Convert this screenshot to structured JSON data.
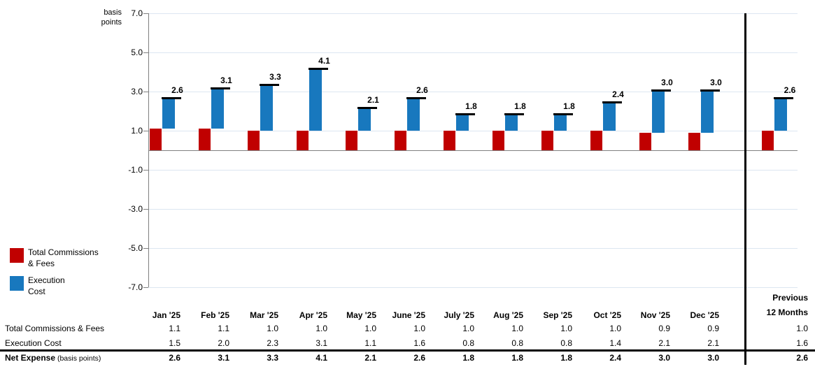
{
  "chart_data": {
    "type": "bar",
    "subtype": "stacked-waterfall",
    "title": "",
    "ylabel": "basis points",
    "ylim": [
      -7.0,
      7.0
    ],
    "y_ticks": [
      7.0,
      5.0,
      3.0,
      1.0,
      -1.0,
      -3.0,
      -5.0,
      -7.0
    ],
    "grid": true,
    "legend_position": "bottom-left",
    "categories": [
      "Jan '25",
      "Feb '25",
      "Mar '25",
      "Apr '25",
      "May '25",
      "June '25",
      "July '25",
      "Aug '25",
      "Sep '25",
      "Oct '25",
      "Nov '25",
      "Dec '25",
      "Previous 12 Months"
    ],
    "series": [
      {
        "name": "Total Commissions & Fees",
        "color": "#C00000",
        "values": [
          1.1,
          1.1,
          1.0,
          1.0,
          1.0,
          1.0,
          1.0,
          1.0,
          1.0,
          1.0,
          0.9,
          0.9,
          1.0
        ]
      },
      {
        "name": "Execution Cost",
        "color": "#1878BE",
        "values": [
          1.5,
          2.0,
          2.3,
          3.1,
          1.1,
          1.6,
          0.8,
          0.8,
          0.8,
          1.4,
          2.1,
          2.1,
          1.6
        ]
      }
    ],
    "totals": {
      "name": "Net Expense",
      "values": [
        2.6,
        3.1,
        3.3,
        4.1,
        2.1,
        2.6,
        1.8,
        1.8,
        1.8,
        2.4,
        3.0,
        3.0,
        2.6
      ]
    },
    "bar_labels": [
      "2.6",
      "3.1",
      "3.3",
      "4.1",
      "2.1",
      "2.6",
      "1.8",
      "1.8",
      "1.8",
      "2.4",
      "3.0",
      "3.0",
      "2.6"
    ]
  },
  "axis": {
    "unit_line1": "basis",
    "unit_line2": "points"
  },
  "legend": {
    "items": [
      {
        "label_line1": "Total Commissions",
        "label_line2": "& Fees",
        "color": "#C00000"
      },
      {
        "label_line1": "Execution",
        "label_line2": "Cost",
        "color": "#1878BE"
      }
    ]
  },
  "table": {
    "month_headers": [
      "Jan '25",
      "Feb '25",
      "Mar '25",
      "Apr '25",
      "May '25",
      "June '25",
      "July '25",
      "Aug '25",
      "Sep '25",
      "Oct '25",
      "Nov '25",
      "Dec '25"
    ],
    "period_header": {
      "line1": "Previous",
      "line2": "12 Months"
    },
    "rows": [
      {
        "label": "Total Commissions & Fees",
        "bold": false,
        "values": [
          "1.1",
          "1.1",
          "1.0",
          "1.0",
          "1.0",
          "1.0",
          "1.0",
          "1.0",
          "1.0",
          "1.0",
          "0.9",
          "0.9"
        ],
        "period_value": "1.0"
      },
      {
        "label": "Execution Cost",
        "bold": false,
        "values": [
          "1.5",
          "2.0",
          "2.3",
          "3.1",
          "1.1",
          "1.6",
          "0.8",
          "0.8",
          "0.8",
          "1.4",
          "2.1",
          "2.1"
        ],
        "period_value": "1.6"
      },
      {
        "label": "Net Expense",
        "label_note": "(basis points)",
        "bold": true,
        "values": [
          "2.6",
          "3.1",
          "3.3",
          "4.1",
          "2.1",
          "2.6",
          "1.8",
          "1.8",
          "1.8",
          "2.4",
          "3.0",
          "3.0"
        ],
        "period_value": "2.6"
      }
    ]
  },
  "colors": {
    "commissions": "#C00000",
    "execution": "#1878BE",
    "gridline": "#DCE6F1",
    "axis_gray": "#808080",
    "divider": "#000000"
  }
}
